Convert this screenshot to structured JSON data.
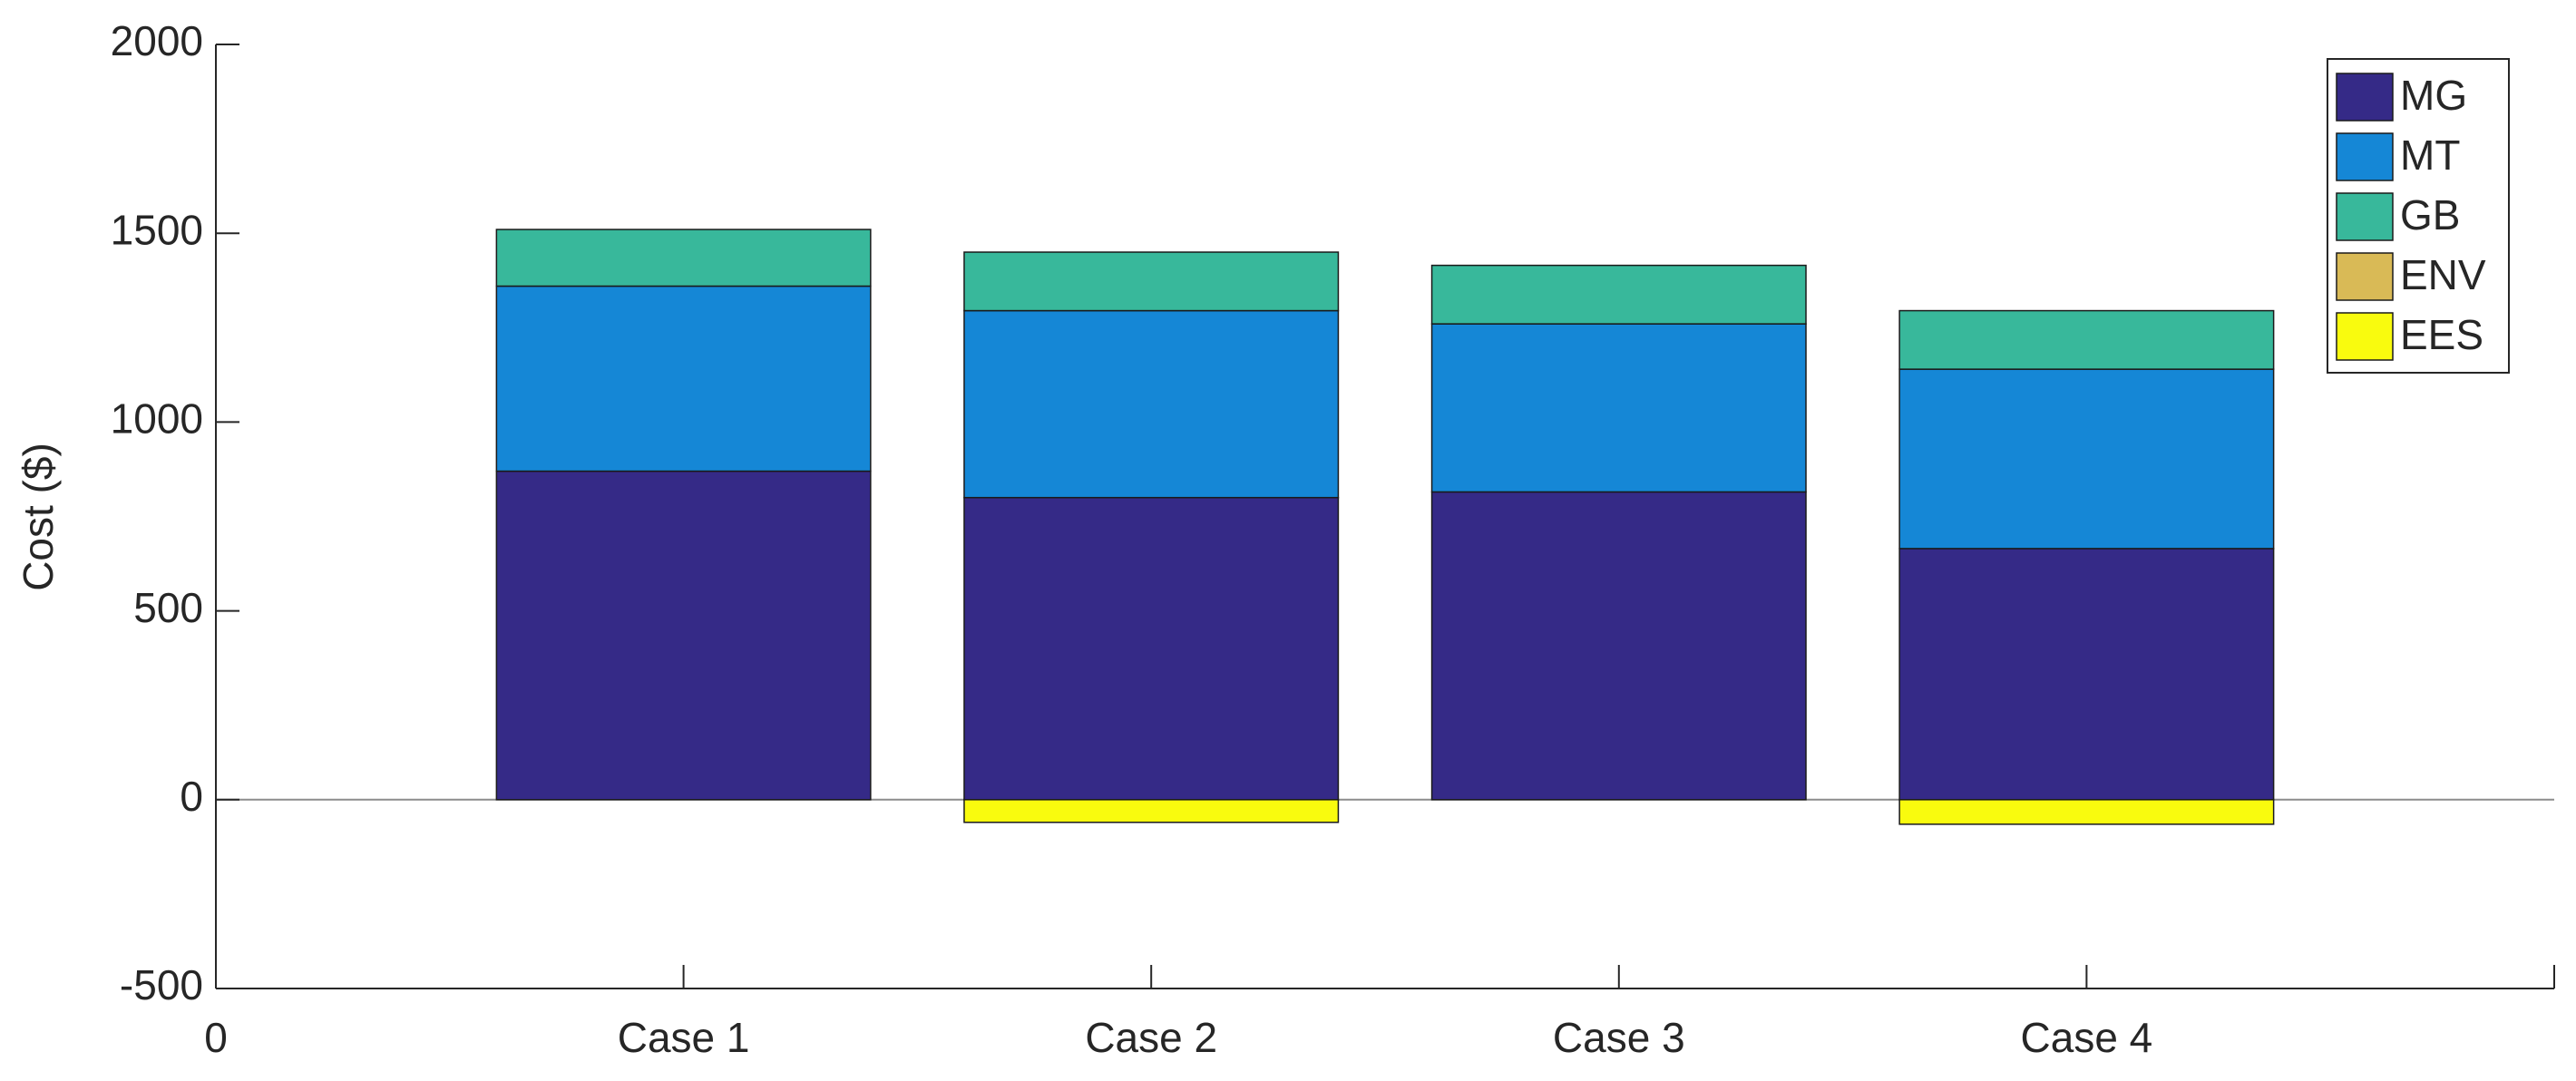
{
  "chart_data": {
    "type": "stacked-bar",
    "y_label": "Cost ($)",
    "x": [
      1,
      2,
      3,
      4
    ],
    "xlim": [
      0,
      5
    ],
    "xticks": [
      0,
      {
        "value": 1,
        "label": "Case 1"
      },
      {
        "value": 2,
        "label": "Case 2"
      },
      {
        "value": 3,
        "label": "Case 3"
      },
      {
        "value": 4,
        "label": "Case 4"
      }
    ],
    "ylim": [
      -500,
      2000
    ],
    "yticks": [
      -500,
      0,
      500,
      1000,
      1500,
      2000
    ],
    "legend": "top-right",
    "series": [
      {
        "name": "MG",
        "color": "#352a87",
        "values": [
          870,
          800,
          815,
          665
        ]
      },
      {
        "name": "MT",
        "color": "#1587d6",
        "values": [
          490,
          495,
          445,
          475
        ]
      },
      {
        "name": "GB",
        "color": "#38b89b",
        "values": [
          150,
          155,
          155,
          155
        ]
      },
      {
        "name": "ENV",
        "color": "#d9ba56",
        "values": [
          0,
          0,
          0,
          0
        ]
      },
      {
        "name": "EES",
        "color": "#f9fb0e",
        "values": [
          0,
          -60,
          0,
          -65
        ]
      }
    ]
  }
}
